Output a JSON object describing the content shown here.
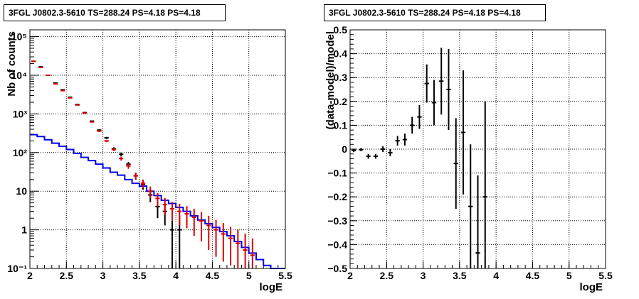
{
  "colors": {
    "data": "#000000",
    "model": "#0000ee",
    "model_total": "#dd0000",
    "grid": "#000000",
    "frame": "#000000"
  },
  "chart_data": [
    {
      "type": "line",
      "title": "3FGL J0802.3-5610 TS=288.24 PS=4.18 PS=4.18",
      "xlabel": "logE",
      "ylabel": "Nb of counts",
      "xlim": [
        2,
        5.5
      ],
      "ylim": [
        0.1,
        150000
      ],
      "yscale": "log",
      "grid": true,
      "xticks": [
        "2",
        "2.5",
        "3",
        "3.5",
        "4",
        "4.5",
        "5",
        "5.5"
      ],
      "yticks": [
        "10⁻¹",
        "1",
        "10",
        "10²",
        "10³",
        "10⁴",
        "10⁵"
      ],
      "bin_width": 0.1,
      "series": [
        {
          "style": "points-errorbars",
          "x": [
            2.05,
            2.15,
            2.25,
            2.35,
            2.45,
            2.55,
            2.65,
            2.75,
            2.85,
            2.95,
            3.05,
            3.15,
            3.25,
            3.35,
            3.45,
            3.55,
            3.65,
            3.75,
            3.85,
            3.95,
            4.05
          ],
          "y": [
            23000,
            16500,
            10000,
            6300,
            4200,
            2700,
            1750,
            1080,
            650,
            380,
            240,
            125,
            90,
            50,
            25,
            15,
            8,
            4,
            3,
            1,
            1
          ],
          "lo": [
            22700,
            16300,
            9900,
            6200,
            4130,
            2650,
            1710,
            1050,
            625,
            360,
            225,
            113,
            80,
            43,
            20,
            11,
            5.2,
            2.0,
            1.3,
            0.1,
            0.1
          ],
          "hi": [
            23300,
            16700,
            10100,
            6400,
            4270,
            2750,
            1790,
            1110,
            675,
            400,
            255,
            137,
            100,
            57,
            30,
            19,
            10.8,
            6.0,
            4.7,
            2.3,
            2.3
          ]
        },
        {
          "style": "step",
          "x": [
            2.05,
            2.15,
            2.25,
            2.35,
            2.45,
            2.55,
            2.65,
            2.75,
            2.85,
            2.95,
            3.05,
            3.15,
            3.25,
            3.35,
            3.45,
            3.55,
            3.65,
            3.75,
            3.85,
            3.95,
            4.05,
            4.15,
            4.25,
            4.35,
            4.45,
            4.55,
            4.65,
            4.75,
            4.85,
            4.95,
            5.05,
            5.15,
            5.25,
            5.35,
            5.45
          ],
          "y": [
            290,
            260,
            215,
            175,
            145,
            120,
            95,
            75,
            62,
            50,
            40,
            31,
            26,
            20,
            16,
            13.5,
            10,
            7.7,
            5.8,
            4.8,
            3.8,
            3.0,
            2.3,
            1.8,
            1.45,
            1.15,
            0.9,
            0.7,
            0.5,
            0.35,
            0.25,
            0.17,
            0.12,
            0.1,
            0.1
          ]
        },
        {
          "style": "step-errorbars",
          "x": [
            2.05,
            2.15,
            2.25,
            2.35,
            2.45,
            2.55,
            2.65,
            2.75,
            2.85,
            2.95,
            3.05,
            3.15,
            3.25,
            3.35,
            3.45,
            3.55,
            3.65,
            3.75,
            3.85,
            3.95,
            4.05,
            4.15,
            4.25,
            4.35,
            4.45,
            4.55,
            4.65,
            4.75,
            4.85,
            4.95,
            5.05
          ],
          "y": [
            23000,
            16000,
            10000,
            6000,
            4000,
            2600,
            1700,
            1050,
            620,
            360,
            200,
            120,
            70,
            45,
            25,
            16,
            10,
            6.5,
            4.5,
            3.5,
            3.0,
            2.6,
            2.1,
            1.7,
            1.3,
            1.0,
            0.78,
            0.6,
            0.45,
            0.3,
            0.22
          ],
          "lo": [
            22700,
            15800,
            9900,
            5900,
            3930,
            2550,
            1660,
            1020,
            595,
            340,
            186,
            109,
            62,
            38,
            20,
            12,
            6.8,
            4.0,
            2.4,
            1.7,
            1.3,
            1.1,
            0.7,
            0.5,
            0.3,
            0.2,
            0.15,
            0.12,
            0.1,
            0.1,
            0.1
          ],
          "hi": [
            23300,
            16200,
            10100,
            6100,
            4070,
            2650,
            1740,
            1080,
            645,
            380,
            214,
            131,
            78,
            52,
            30,
            20,
            13.2,
            9.0,
            6.6,
            5.3,
            4.7,
            4.1,
            3.5,
            2.9,
            2.3,
            1.8,
            1.5,
            1.2,
            1.0,
            0.8,
            0.6
          ]
        }
      ]
    },
    {
      "type": "scatter",
      "title": "3FGL J0802.3-5610 TS=288.24 PS=4.18 PS=4.18",
      "xlabel": "logE",
      "ylabel": "(data-model)/model",
      "xlim": [
        2,
        5.5
      ],
      "ylim": [
        -0.5,
        0.5
      ],
      "grid": true,
      "xticks": [
        "2",
        "2.5",
        "3",
        "3.5",
        "4",
        "4.5",
        "5",
        "5.5"
      ],
      "yticks": [
        "−0.5",
        "−0.4",
        "−0.3",
        "−0.2",
        "−0.1",
        "0",
        "0.1",
        "0.2",
        "0.3",
        "0.4",
        "0.5"
      ],
      "bin_width": 0.1,
      "series": [
        {
          "style": "points-errorbars",
          "x": [
            2.05,
            2.15,
            2.25,
            2.35,
            2.45,
            2.55,
            2.65,
            2.75,
            2.85,
            2.95,
            3.05,
            3.15,
            3.25,
            3.35,
            3.45,
            3.55,
            3.65,
            3.75,
            3.85
          ],
          "y": [
            -0.005,
            -0.002,
            -0.03,
            -0.03,
            0.0,
            -0.015,
            0.035,
            0.04,
            0.1,
            0.135,
            0.275,
            0.195,
            0.285,
            0.25,
            -0.06,
            0.07,
            -0.24,
            -0.435,
            -0.2
          ],
          "lo": [
            -0.012,
            -0.009,
            -0.04,
            -0.04,
            -0.012,
            -0.03,
            0.015,
            0.015,
            0.065,
            0.085,
            0.195,
            0.1,
            0.145,
            0.08,
            -0.25,
            -0.19,
            -0.5,
            -0.5,
            -0.5
          ],
          "hi": [
            0.002,
            0.005,
            -0.02,
            -0.02,
            0.012,
            0.0,
            0.055,
            0.065,
            0.135,
            0.185,
            0.355,
            0.29,
            0.425,
            0.42,
            0.13,
            0.33,
            0.02,
            -0.11,
            0.2
          ]
        }
      ]
    }
  ]
}
